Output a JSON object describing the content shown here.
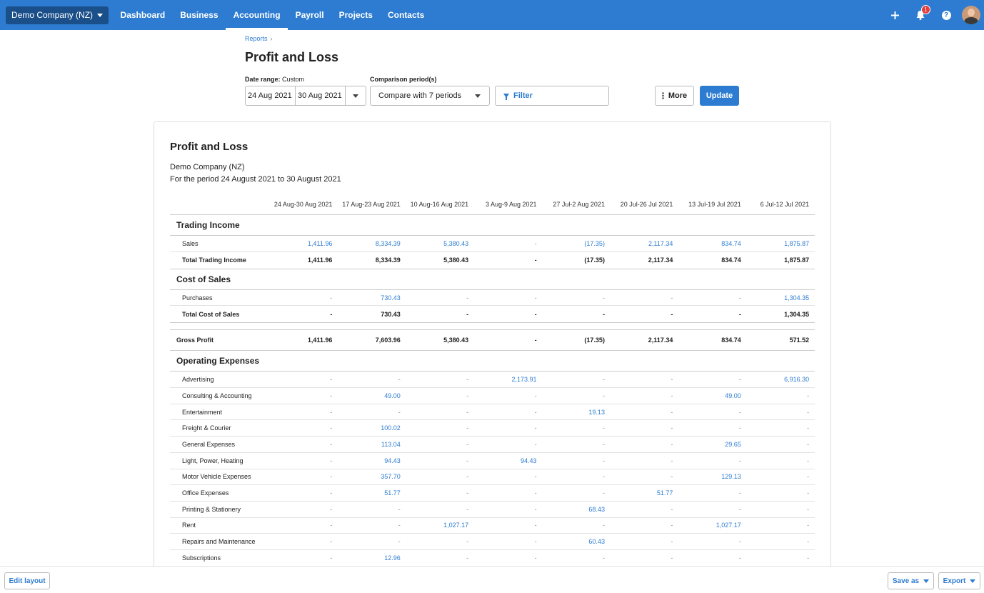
{
  "nav": {
    "org": "Demo Company (NZ)",
    "links": [
      "Dashboard",
      "Business",
      "Accounting",
      "Payroll",
      "Projects",
      "Contacts"
    ],
    "active": "Accounting",
    "notification_count": "1",
    "icons": {
      "add": "plus-icon",
      "notifications": "bell-icon",
      "help": "help-icon",
      "avatar": "avatar"
    }
  },
  "breadcrumb": {
    "reports": "Reports",
    "sep": "›"
  },
  "page_title": "Profit and Loss",
  "controls": {
    "date_range_label": "Date range:",
    "date_range_value": "Custom",
    "start_date": "24 Aug 2021",
    "end_date": "30 Aug 2021",
    "comparison_label": "Comparison period(s)",
    "comparison_value": "Compare with 7 periods",
    "filter_label": "Filter",
    "more_label": "More",
    "update_label": "Update"
  },
  "report": {
    "title": "Profit and Loss",
    "org": "Demo Company (NZ)",
    "period": "For the period 24 August 2021 to 30 August 2021",
    "columns": [
      "24 Aug-30 Aug 2021",
      "17 Aug-23 Aug 2021",
      "10 Aug-16 Aug 2021",
      "3 Aug-9 Aug 2021",
      "27 Jul-2 Aug 2021",
      "20 Jul-26 Jul 2021",
      "13 Jul-19 Jul 2021",
      "6 Jul-12 Jul 2021"
    ],
    "trading_income": {
      "heading": "Trading Income",
      "rows": [
        {
          "label": "Sales",
          "values": [
            "1,411.96",
            "8,334.39",
            "5,380.43",
            "-",
            "(17.35)",
            "2,117.34",
            "834.74",
            "1,875.87"
          ]
        }
      ],
      "total": {
        "label": "Total Trading Income",
        "values": [
          "1,411.96",
          "8,334.39",
          "5,380.43",
          "-",
          "(17.35)",
          "2,117.34",
          "834.74",
          "1,875.87"
        ]
      }
    },
    "cost_of_sales": {
      "heading": "Cost of Sales",
      "rows": [
        {
          "label": "Purchases",
          "values": [
            "-",
            "730.43",
            "-",
            "-",
            "-",
            "-",
            "-",
            "1,304.35"
          ]
        }
      ],
      "total": {
        "label": "Total Cost of Sales",
        "values": [
          "-",
          "730.43",
          "-",
          "-",
          "-",
          "-",
          "-",
          "1,304.35"
        ]
      }
    },
    "gross_profit": {
      "label": "Gross Profit",
      "values": [
        "1,411.96",
        "7,603.96",
        "5,380.43",
        "-",
        "(17.35)",
        "2,117.34",
        "834.74",
        "571.52"
      ]
    },
    "operating_expenses": {
      "heading": "Operating Expenses",
      "rows": [
        {
          "label": "Advertising",
          "values": [
            "-",
            "-",
            "-",
            "2,173.91",
            "-",
            "-",
            "-",
            "6,916.30"
          ]
        },
        {
          "label": "Consulting & Accounting",
          "values": [
            "-",
            "49.00",
            "-",
            "-",
            "-",
            "-",
            "49.00",
            "-"
          ]
        },
        {
          "label": "Entertainment",
          "values": [
            "-",
            "-",
            "-",
            "-",
            "19.13",
            "-",
            "-",
            "-"
          ]
        },
        {
          "label": "Freight & Courier",
          "values": [
            "-",
            "100.02",
            "-",
            "-",
            "-",
            "-",
            "-",
            "-"
          ]
        },
        {
          "label": "General Expenses",
          "values": [
            "-",
            "113.04",
            "-",
            "-",
            "-",
            "-",
            "29.65",
            "-"
          ]
        },
        {
          "label": "Light, Power, Heating",
          "values": [
            "-",
            "94.43",
            "-",
            "94.43",
            "-",
            "-",
            "-",
            "-"
          ]
        },
        {
          "label": "Motor Vehicle Expenses",
          "values": [
            "-",
            "357.70",
            "-",
            "-",
            "-",
            "-",
            "129.13",
            "-"
          ]
        },
        {
          "label": "Office Expenses",
          "values": [
            "-",
            "51.77",
            "-",
            "-",
            "-",
            "51.77",
            "-",
            "-"
          ]
        },
        {
          "label": "Printing & Stationery",
          "values": [
            "-",
            "-",
            "-",
            "-",
            "68.43",
            "-",
            "-",
            "-"
          ]
        },
        {
          "label": "Rent",
          "values": [
            "-",
            "-",
            "1,027.17",
            "-",
            "-",
            "-",
            "1,027.17",
            "-"
          ]
        },
        {
          "label": "Repairs and Maintenance",
          "values": [
            "-",
            "-",
            "-",
            "-",
            "60.43",
            "-",
            "-",
            "-"
          ]
        },
        {
          "label": "Subscriptions",
          "values": [
            "-",
            "12.96",
            "-",
            "-",
            "-",
            "-",
            "-",
            "-"
          ]
        }
      ]
    }
  },
  "bottom": {
    "edit_layout": "Edit layout",
    "save_as": "Save as",
    "export": "Export"
  },
  "colors": {
    "nav": "#2d7cd1",
    "org_button": "#1a4f8a",
    "link": "#2d7cd1",
    "badge": "#e23c3c"
  }
}
